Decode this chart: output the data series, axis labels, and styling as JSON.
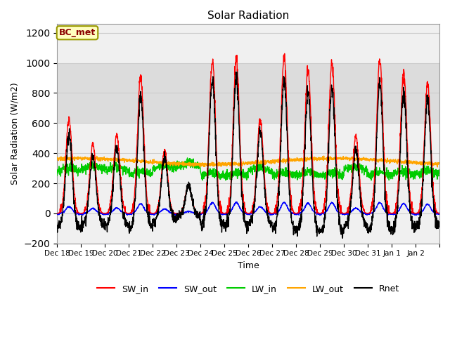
{
  "title": "Solar Radiation",
  "ylabel": "Solar Radiation (W/m2)",
  "xlabel": "Time",
  "ylim": [
    -200,
    1260
  ],
  "yticks": [
    -200,
    0,
    200,
    400,
    600,
    800,
    1000,
    1200
  ],
  "annotation_text": "BC_met",
  "annotation_color": "#8B0000",
  "annotation_bg": "#FFFFC0",
  "annotation_border": "#999900",
  "series_colors": {
    "SW_in": "#FF0000",
    "SW_out": "#0000FF",
    "LW_in": "#00CC00",
    "LW_out": "#FFA500",
    "Rnet": "#000000"
  },
  "n_days": 16,
  "start_day": 18,
  "plot_bg": "#F0F0F0",
  "band_color": "#DCDCDC",
  "band_low": 600,
  "band_high": 1000,
  "grid_color": "#CCCCCC",
  "peak_vals": [
    630,
    460,
    520,
    910,
    420,
    185,
    1020,
    1030,
    630,
    1040,
    960,
    1000,
    510,
    1020,
    940,
    860
  ],
  "tick_labels": [
    "Dec 18",
    "Dec 19",
    "Dec 20",
    "Dec 21",
    "Dec 22",
    "Dec 23",
    "Dec 24",
    "Dec 25",
    "Dec 26",
    "Dec 27",
    "Dec 28",
    "Dec 29",
    "Dec 30",
    "Dec 31",
    "Jan 1",
    "Jan 2",
    ""
  ]
}
